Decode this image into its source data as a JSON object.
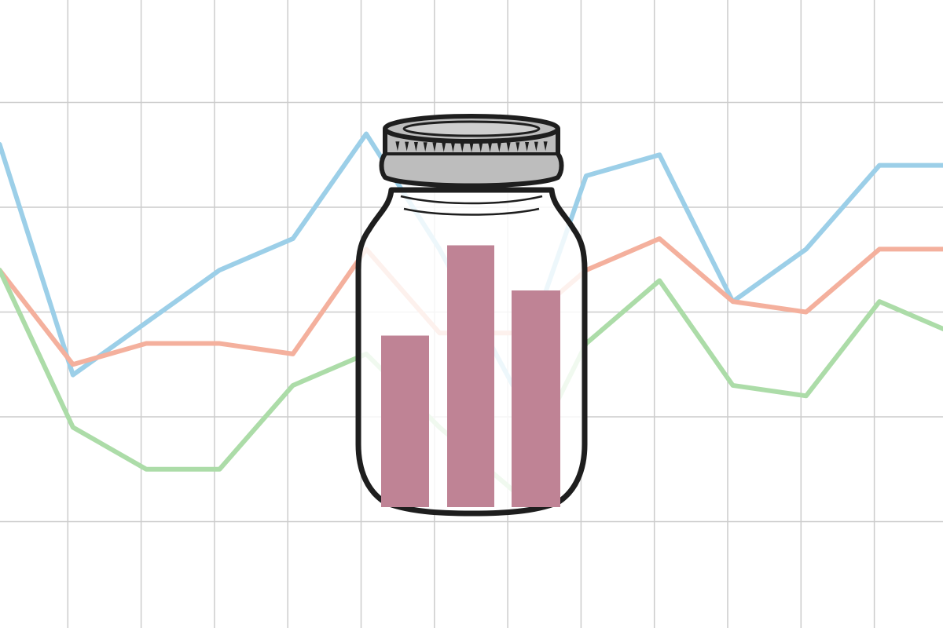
{
  "colors": {
    "background": "#ffffff",
    "grid": "#cccccc",
    "jar_outline": "#1e1e1e",
    "lid": "#bdbdbd",
    "bars": "#bf8395"
  },
  "chart_data": [
    {
      "type": "line",
      "grid": true,
      "x": [
        0,
        1,
        2,
        3,
        4,
        5,
        6,
        7,
        8,
        9,
        10,
        11,
        12,
        13
      ],
      "ylim": [
        0,
        6
      ],
      "series": [
        {
          "color": "#9ccfe8",
          "values": [
            4.6,
            2.4,
            2.9,
            3.4,
            3.7,
            4.7,
            3.6,
            2.3,
            4.3,
            4.5,
            3.1,
            3.6,
            4.4,
            4.4
          ]
        },
        {
          "color": "#f4b09d",
          "values": [
            3.4,
            2.5,
            2.7,
            2.7,
            2.6,
            3.6,
            2.8,
            2.8,
            3.4,
            3.7,
            3.1,
            3.0,
            3.6,
            3.6
          ]
        },
        {
          "color": "#acdca8",
          "values": [
            3.4,
            1.9,
            1.5,
            1.5,
            2.3,
            2.6,
            1.9,
            1.3,
            2.7,
            3.3,
            2.3,
            2.2,
            3.1,
            2.8
          ]
        }
      ]
    },
    {
      "type": "bar",
      "values": [
        1.9,
        2.9,
        2.4
      ],
      "ylim": [
        0,
        3
      ]
    }
  ]
}
